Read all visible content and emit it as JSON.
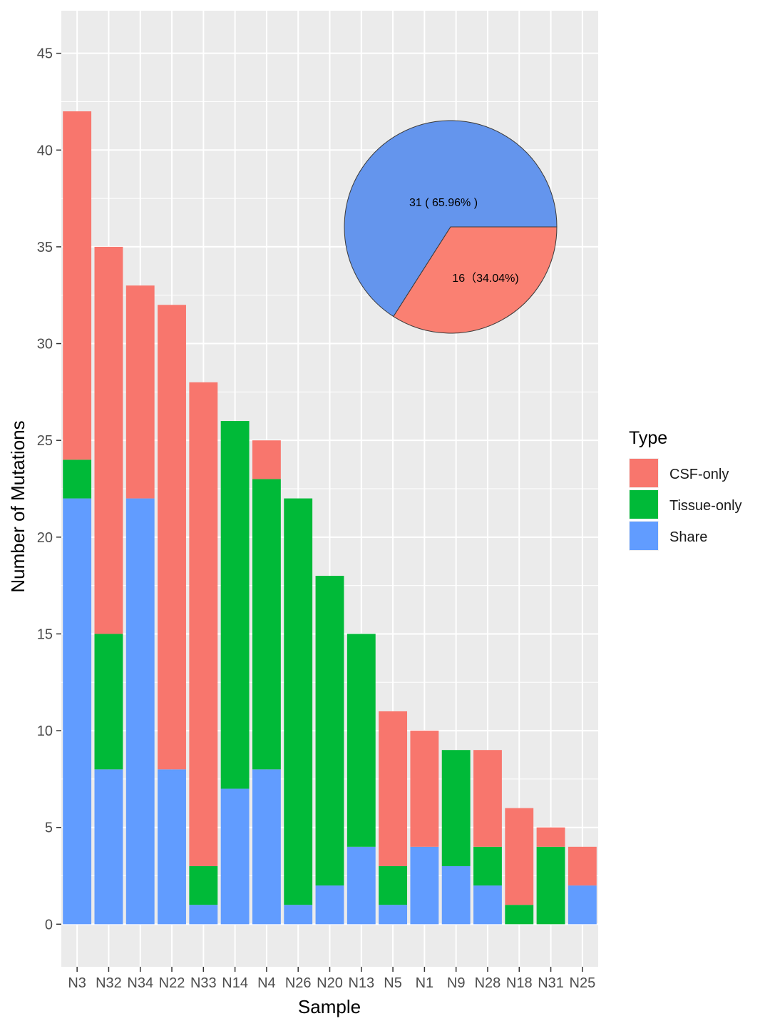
{
  "chart_data": {
    "type": "bar",
    "stacked": true,
    "xlabel": "Sample",
    "ylabel": "Number of Mutations",
    "ylim": [
      -2.2,
      47.2
    ],
    "yticks": [
      0,
      5,
      10,
      15,
      20,
      25,
      30,
      35,
      40,
      45
    ],
    "ytick_labels": [
      "0",
      "5",
      "10",
      "15",
      "20",
      "25",
      "30",
      "35",
      "40",
      "45"
    ],
    "grid": true,
    "categories": [
      "N3",
      "N32",
      "N34",
      "N22",
      "N33",
      "N14",
      "N4",
      "N26",
      "N20",
      "N13",
      "N5",
      "N1",
      "N9",
      "N28",
      "N18",
      "N31",
      "N25"
    ],
    "series": [
      {
        "name": "Share",
        "color": "#619cff",
        "values": [
          22,
          8,
          22,
          8,
          1,
          7,
          8,
          1,
          2,
          4,
          1,
          4,
          3,
          2,
          0,
          0,
          2
        ]
      },
      {
        "name": "Tissue-only",
        "color": "#00ba38",
        "values": [
          2,
          7,
          0,
          0,
          2,
          19,
          15,
          21,
          16,
          11,
          2,
          0,
          6,
          2,
          1,
          4,
          0
        ]
      },
      {
        "name": "CSF-only",
        "color": "#f8766d",
        "values": [
          18,
          20,
          11,
          24,
          25,
          0,
          2,
          0,
          0,
          0,
          8,
          6,
          0,
          5,
          5,
          1,
          2
        ]
      }
    ],
    "legend": {
      "title": "Type",
      "position": "right",
      "entries": [
        {
          "label": "CSF-only",
          "color": "#f8766d"
        },
        {
          "label": "Tissue-only",
          "color": "#00ba38"
        },
        {
          "label": "Share",
          "color": "#619cff"
        }
      ]
    },
    "inset_pie": {
      "type": "pie",
      "slices": [
        {
          "value": 31,
          "percent": 65.96,
          "label": "31 ( 65.96% )",
          "color": "#6495ed"
        },
        {
          "value": 16,
          "percent": 34.04,
          "label": "16（34.04%)",
          "color": "#fa8072"
        }
      ]
    }
  }
}
